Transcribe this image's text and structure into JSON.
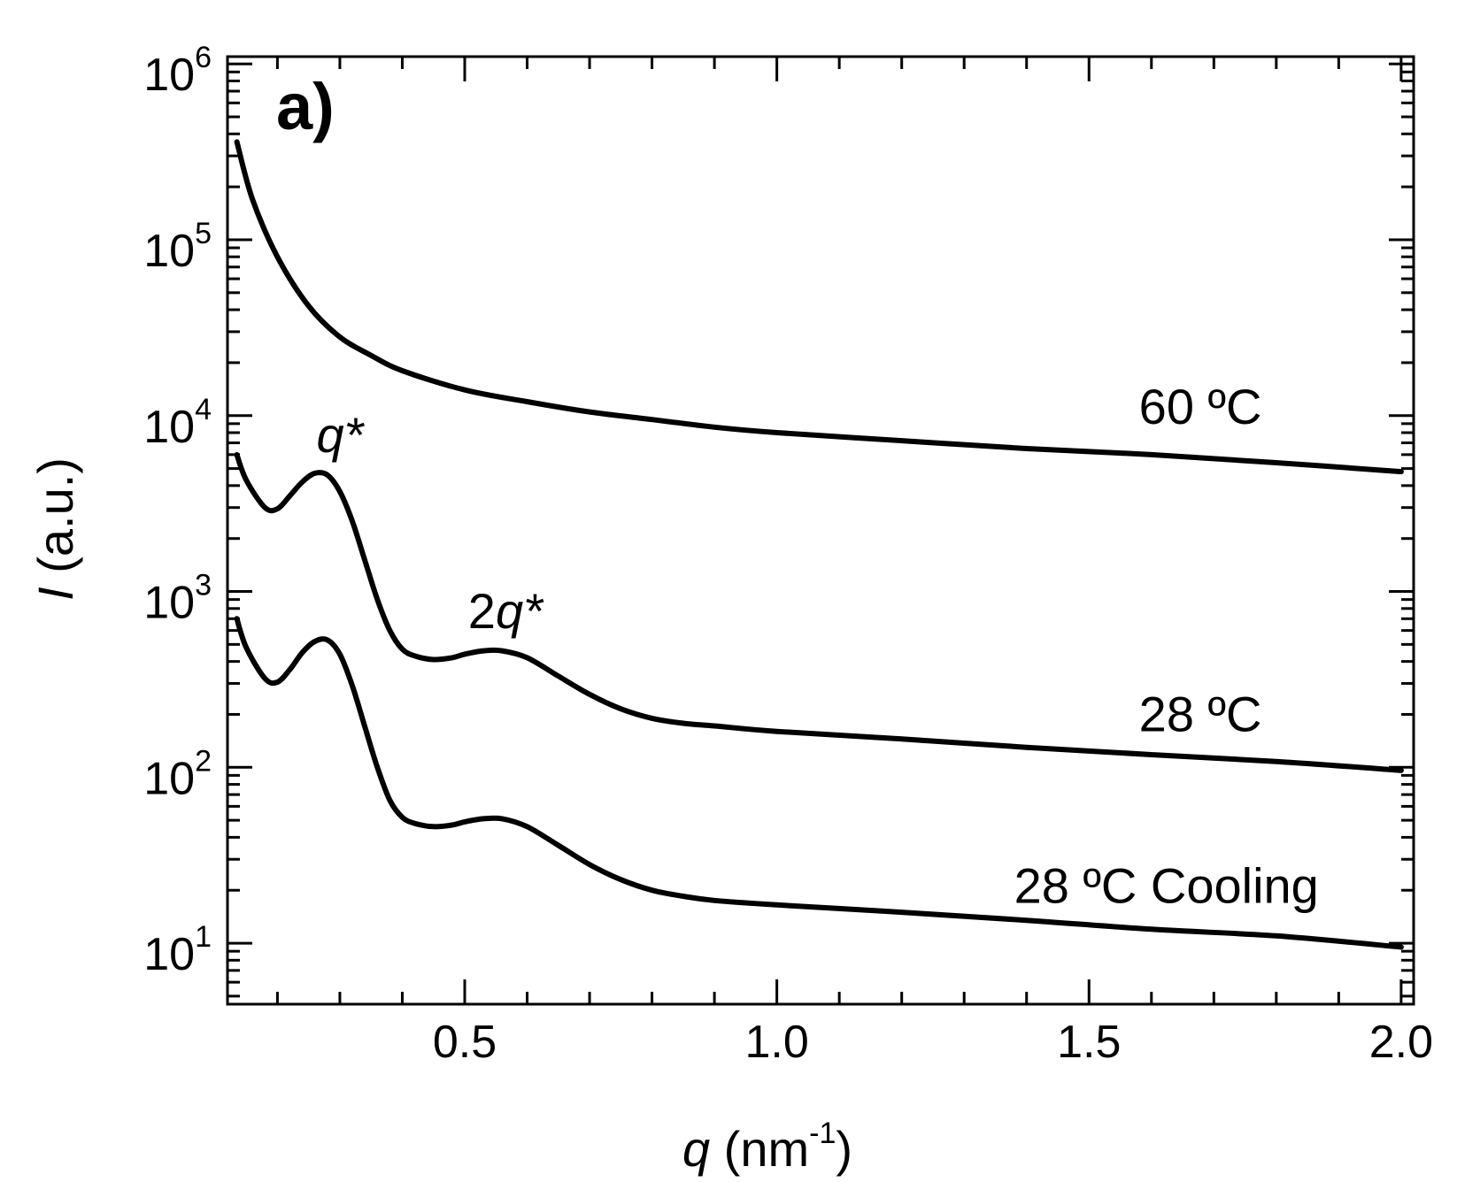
{
  "chart_data": {
    "type": "line",
    "panel_label": "a)",
    "xlabel": {
      "var": "q",
      "unit_base": " (nm",
      "unit_exp": "-1",
      "unit_close": ")"
    },
    "ylabel": {
      "var": "I",
      "unit": " (a.u.)"
    },
    "x_scale": "linear",
    "y_scale": "log",
    "xlim": [
      0.12,
      2.02
    ],
    "ylim": [
      4.5,
      1100000
    ],
    "x_ticks": [
      {
        "value": 0.5,
        "label": "0.5"
      },
      {
        "value": 1.0,
        "label": "1.0"
      },
      {
        "value": 1.5,
        "label": "1.5"
      },
      {
        "value": 2.0,
        "label": "2.0"
      }
    ],
    "y_ticks": [
      {
        "value": 10,
        "base": "10",
        "exp": "1"
      },
      {
        "value": 100,
        "base": "10",
        "exp": "2"
      },
      {
        "value": 1000,
        "base": "10",
        "exp": "3"
      },
      {
        "value": 10000,
        "base": "10",
        "exp": "4"
      },
      {
        "value": 100000,
        "base": "10",
        "exp": "5"
      },
      {
        "value": 1000000,
        "base": "10",
        "exp": "6"
      }
    ],
    "series": [
      {
        "name": "60 ºC",
        "label_at": [
          1.58,
          9000
        ],
        "x": [
          0.135,
          0.16,
          0.2,
          0.25,
          0.3,
          0.35,
          0.4,
          0.5,
          0.6,
          0.7,
          0.8,
          0.9,
          1.0,
          1.2,
          1.4,
          1.6,
          1.8,
          2.0
        ],
        "y": [
          360000,
          170000,
          80000,
          42000,
          28000,
          22000,
          18000,
          14000,
          12000,
          10500,
          9500,
          8600,
          8000,
          7200,
          6500,
          6000,
          5400,
          4800
        ]
      },
      {
        "name": "28 ºC",
        "label_at": [
          1.58,
          160
        ],
        "x": [
          0.135,
          0.15,
          0.18,
          0.2,
          0.22,
          0.24,
          0.26,
          0.28,
          0.3,
          0.32,
          0.34,
          0.36,
          0.38,
          0.4,
          0.42,
          0.45,
          0.48,
          0.5,
          0.53,
          0.56,
          0.6,
          0.65,
          0.7,
          0.75,
          0.8,
          0.85,
          0.9,
          1.0,
          1.2,
          1.4,
          1.6,
          1.8,
          2.0
        ],
        "y": [
          6000,
          4300,
          3000,
          2950,
          3500,
          4200,
          4700,
          4600,
          3700,
          2500,
          1500,
          900,
          600,
          470,
          430,
          410,
          420,
          440,
          460,
          460,
          420,
          330,
          260,
          215,
          190,
          178,
          172,
          160,
          145,
          130,
          118,
          108,
          96
        ]
      },
      {
        "name": "28 ºC Cooling",
        "label_at": [
          1.38,
          17
        ],
        "x": [
          0.135,
          0.15,
          0.18,
          0.2,
          0.22,
          0.24,
          0.26,
          0.28,
          0.3,
          0.32,
          0.34,
          0.36,
          0.38,
          0.4,
          0.42,
          0.45,
          0.48,
          0.5,
          0.53,
          0.56,
          0.6,
          0.65,
          0.7,
          0.75,
          0.8,
          0.85,
          0.9,
          1.0,
          1.2,
          1.4,
          1.6,
          1.8,
          2.0
        ],
        "y": [
          700,
          480,
          320,
          305,
          360,
          450,
          520,
          530,
          440,
          290,
          170,
          100,
          65,
          52,
          48,
          46,
          47,
          49,
          51,
          51,
          46,
          36,
          28,
          23,
          20,
          18.5,
          17.5,
          16.5,
          15,
          13.5,
          12,
          11,
          9.5
        ]
      }
    ],
    "annotations": [
      {
        "text_var": "q",
        "text_suffix": "*",
        "text_prefix": "",
        "at": [
          0.3,
          6200
        ]
      },
      {
        "text_var": "q",
        "text_suffix": "*",
        "text_prefix": "2",
        "at": [
          0.565,
          620
        ]
      }
    ]
  }
}
